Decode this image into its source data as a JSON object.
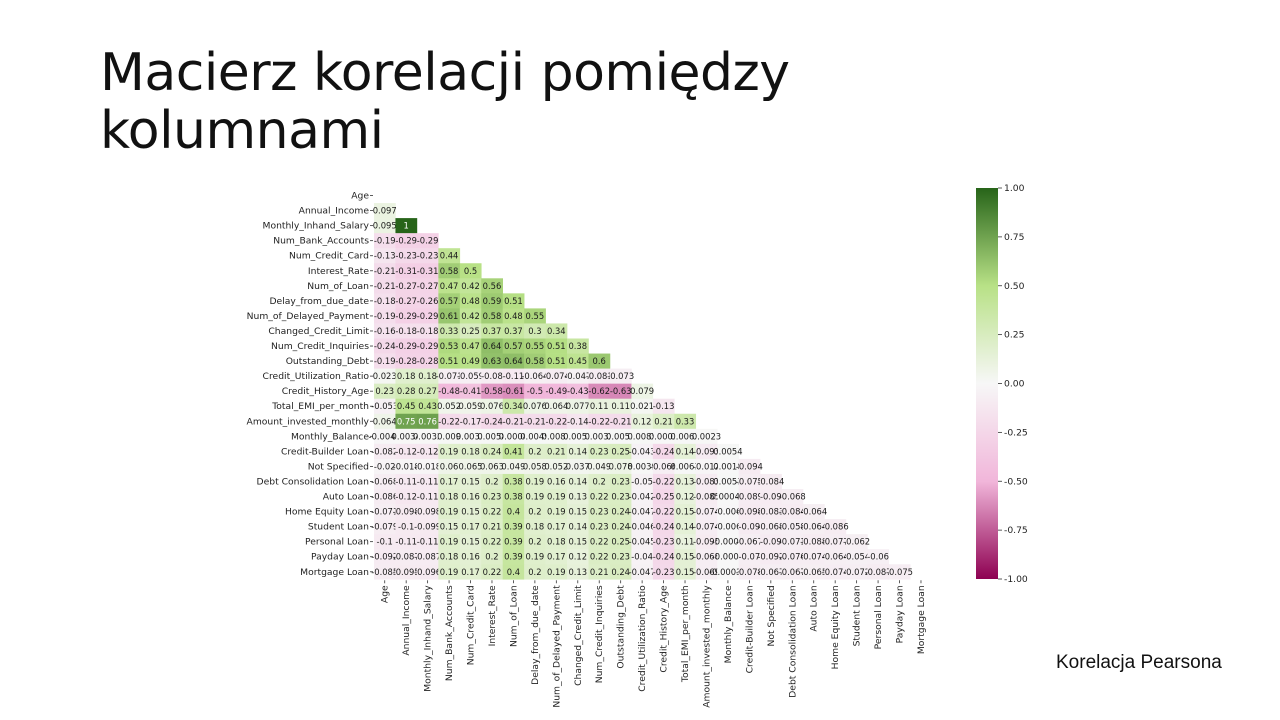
{
  "slide": {
    "title": "Macierz korelacji pomiędzy kolumnami",
    "caption": "Korelacja Pearsona"
  },
  "colors": {
    "min": "#8e0152",
    "mid_low": "#f1b6da",
    "center": "#f7f7f7",
    "mid_high": "#b8e186",
    "max": "#276419"
  },
  "chart_data": {
    "type": "heatmap",
    "mask": "upper-triangle",
    "labels": [
      "Age",
      "Annual_Income",
      "Monthly_Inhand_Salary",
      "Num_Bank_Accounts",
      "Num_Credit_Card",
      "Interest_Rate",
      "Num_of_Loan",
      "Delay_from_due_date",
      "Num_of_Delayed_Payment",
      "Changed_Credit_Limit",
      "Num_Credit_Inquiries",
      "Outstanding_Debt",
      "Credit_Utilization_Ratio",
      "Credit_History_Age",
      "Total_EMI_per_month",
      "Amount_invested_monthly",
      "Monthly_Balance",
      "Credit-Builder Loan",
      "Not Specified",
      "Debt Consolidation Loan",
      "Auto Loan",
      "Home Equity Loan",
      "Student Loan",
      "Personal Loan",
      "Payday Loan",
      "Mortgage Loan"
    ],
    "values": [
      [],
      [
        "0.097"
      ],
      [
        "0.095",
        "1"
      ],
      [
        "-0.19",
        "-0.29",
        "-0.29"
      ],
      [
        "-0.13",
        "-0.23",
        "-0.23",
        "0.44"
      ],
      [
        "-0.21",
        "-0.31",
        "-0.31",
        "0.58",
        "0.5"
      ],
      [
        "-0.21",
        "-0.27",
        "-0.27",
        "0.47",
        "0.42",
        "0.56"
      ],
      [
        "-0.18",
        "-0.27",
        "-0.26",
        "0.57",
        "0.48",
        "0.59",
        "0.51"
      ],
      [
        "-0.19",
        "-0.29",
        "-0.29",
        "0.61",
        "0.42",
        "0.58",
        "0.48",
        "0.55"
      ],
      [
        "-0.16",
        "-0.18",
        "-0.18",
        "0.33",
        "0.25",
        "0.37",
        "0.37",
        "0.3",
        "0.34"
      ],
      [
        "-0.24",
        "-0.29",
        "-0.29",
        "0.53",
        "0.47",
        "0.64",
        "0.57",
        "0.55",
        "0.51",
        "0.38"
      ],
      [
        "-0.19",
        "-0.28",
        "-0.28",
        "0.51",
        "0.49",
        "0.63",
        "0.64",
        "0.58",
        "0.51",
        "0.45",
        "0.6"
      ],
      [
        "0.023",
        "0.18",
        "0.18",
        "-0.071",
        "-0.059",
        "-0.08",
        "-0.11",
        "-0.064",
        "-0.074",
        "-0.047",
        "-0.081",
        "-0.073"
      ],
      [
        "0.23",
        "0.28",
        "0.27",
        "-0.48",
        "-0.41",
        "-0.58",
        "-0.61",
        "-0.5",
        "-0.49",
        "-0.43",
        "-0.62",
        "-0.63",
        "0.079"
      ],
      [
        "-0.053",
        "0.45",
        "0.43",
        "0.052",
        "0.059",
        "0.076",
        "0.34",
        "0.076",
        "0.064",
        "0.077",
        "0.11",
        "0.11",
        "0.021",
        "-0.13"
      ],
      [
        "0.064",
        "0.75",
        "0.76",
        "-0.22",
        "-0.17",
        "-0.24",
        "-0.21",
        "-0.21",
        "-0.22",
        "-0.14",
        "-0.22",
        "-0.21",
        "0.12",
        "0.21",
        "0.33"
      ],
      [
        "-0.0042",
        "0.0034",
        "0.0032",
        "0.009",
        "0.0032",
        "0.0058",
        "0.0008",
        "0.0049",
        "0.0081",
        "0.0051",
        "0.0032",
        "0.0051",
        "0.0085",
        "0.0002",
        "0.0063",
        "0.0023"
      ],
      [
        "-0.082",
        "-0.12",
        "-0.12",
        "0.19",
        "0.18",
        "0.24",
        "0.41",
        "0.2",
        "0.21",
        "0.14",
        "0.23",
        "0.25",
        "-0.043",
        "-0.24",
        "0.14",
        "-0.093",
        "0.0054"
      ],
      [
        "-0.02",
        "-0.018",
        "-0.018",
        "0.06",
        "0.065",
        "0.063",
        "0.049",
        "0.058",
        "0.052",
        "0.037",
        "0.049",
        "0.078",
        "0.0039",
        "-0.066",
        "0.0063",
        "-0.012",
        "0.0018",
        "-0.094"
      ],
      [
        "-0.068",
        "-0.11",
        "-0.11",
        "0.17",
        "0.15",
        "0.2",
        "0.38",
        "0.19",
        "0.16",
        "0.14",
        "0.2",
        "0.23",
        "-0.05",
        "-0.22",
        "0.13",
        "-0.083",
        "0.0053",
        "-0.075",
        "-0.084"
      ],
      [
        "-0.086",
        "-0.12",
        "-0.11",
        "0.18",
        "0.16",
        "0.23",
        "0.38",
        "0.19",
        "0.19",
        "0.13",
        "0.22",
        "0.23",
        "-0.042",
        "-0.25",
        "0.12",
        "-0.085",
        "0.00044",
        "-0.089",
        "-0.09",
        "-0.068"
      ],
      [
        "-0.071",
        "-0.098",
        "-0.098",
        "0.19",
        "0.15",
        "0.22",
        "0.4",
        "0.2",
        "0.19",
        "0.15",
        "0.23",
        "0.24",
        "-0.047",
        "-0.22",
        "0.15",
        "-0.074",
        "-0.006",
        "-0.098",
        "-0.083",
        "-0.084",
        "-0.064"
      ],
      [
        "-0.079",
        "-0.1",
        "-0.099",
        "0.15",
        "0.17",
        "0.21",
        "0.39",
        "0.18",
        "0.17",
        "0.14",
        "0.23",
        "0.24",
        "-0.046",
        "-0.24",
        "0.14",
        "-0.074",
        "-0.006",
        "-0.09",
        "-0.068",
        "-0.058",
        "-0.064",
        "-0.086"
      ],
      [
        "-0.1",
        "-0.11",
        "-0.11",
        "0.19",
        "0.15",
        "0.22",
        "0.39",
        "0.2",
        "0.18",
        "0.15",
        "0.22",
        "0.25",
        "-0.045",
        "-0.23",
        "0.11",
        "-0.095",
        "-0.0003",
        "-0.067",
        "-0.09",
        "-0.071",
        "-0.088",
        "-0.077",
        "-0.062"
      ],
      [
        "-0.092",
        "-0.087",
        "-0.087",
        "0.18",
        "0.16",
        "0.2",
        "0.39",
        "0.19",
        "0.17",
        "0.12",
        "0.22",
        "0.23",
        "-0.04",
        "-0.24",
        "0.15",
        "-0.068",
        "-0.0002",
        "-0.07",
        "-0.092",
        "-0.076",
        "-0.074",
        "-0.064",
        "-0.054",
        "-0.06"
      ],
      [
        "-0.085",
        "-0.095",
        "-0.096",
        "0.19",
        "0.17",
        "0.22",
        "0.4",
        "0.2",
        "0.19",
        "0.13",
        "0.21",
        "0.24",
        "-0.047",
        "-0.23",
        "0.15",
        "-0.069",
        "-0.00036",
        "-0.078",
        "-0.067",
        "-0.067",
        "-0.065",
        "-0.074",
        "-0.072",
        "-0.087",
        "-0.075"
      ]
    ],
    "colorbar": {
      "range": [
        -1,
        1
      ],
      "ticks": [
        "1.00",
        "0.75",
        "0.50",
        "0.25",
        "0.00",
        "-0.25",
        "-0.50",
        "-0.75",
        "-1.00"
      ]
    }
  }
}
